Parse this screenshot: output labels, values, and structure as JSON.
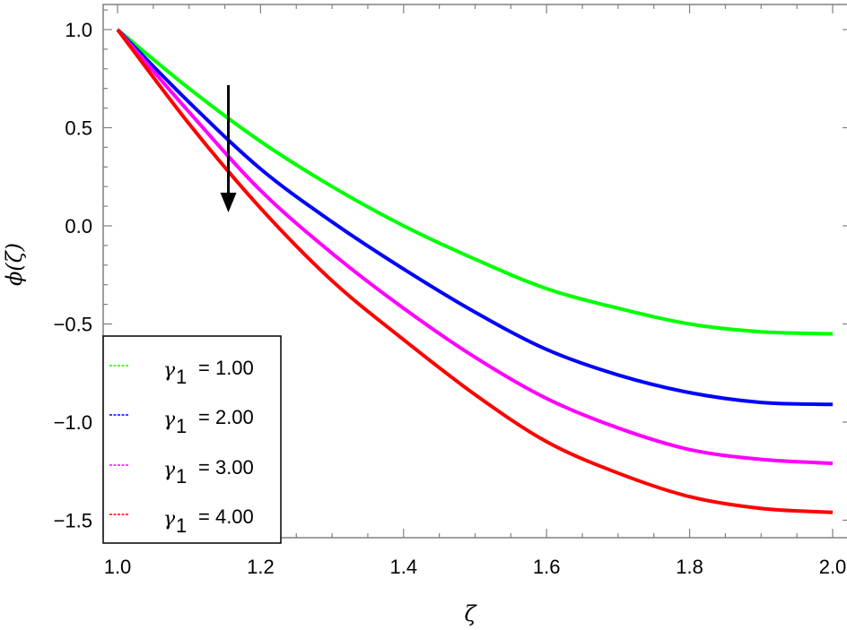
{
  "chart_data": {
    "type": "line",
    "title": "",
    "xlabel": "ζ",
    "ylabel": "ϕ(ζ)",
    "xlim": [
      1.0,
      2.0
    ],
    "ylim": [
      -1.6,
      1.1
    ],
    "grid": false,
    "frame": true,
    "legend_position": "lower-left inside",
    "x_ticks": [
      1.0,
      1.2,
      1.4,
      1.6,
      1.8,
      2.0
    ],
    "x_tick_labels": [
      "1.0",
      "1.2",
      "1.4",
      "1.6",
      "1.8",
      "2.0"
    ],
    "y_ticks": [
      1.0,
      0.5,
      0.0,
      -0.5,
      -1.0,
      -1.5
    ],
    "y_tick_labels": [
      "1.0",
      "0.5",
      "0.0",
      "−0.5",
      "−1.0",
      "−1.5"
    ],
    "x": [
      1.0,
      1.1,
      1.2,
      1.3,
      1.4,
      1.5,
      1.6,
      1.7,
      1.8,
      1.9,
      2.0
    ],
    "series": [
      {
        "name": "γ1 = 1.00",
        "color": "#00ff00",
        "values": [
          1.0,
          0.7,
          0.43,
          0.2,
          0.0,
          -0.17,
          -0.32,
          -0.42,
          -0.5,
          -0.54,
          -0.55
        ]
      },
      {
        "name": "γ1 = 2.00",
        "color": "#0000ff",
        "values": [
          1.0,
          0.63,
          0.29,
          0.02,
          -0.22,
          -0.44,
          -0.63,
          -0.76,
          -0.85,
          -0.9,
          -0.91
        ]
      },
      {
        "name": "γ1 = 3.00",
        "color": "#ff00ff",
        "values": [
          1.0,
          0.58,
          0.18,
          -0.14,
          -0.42,
          -0.67,
          -0.88,
          -1.03,
          -1.14,
          -1.19,
          -1.21
        ]
      },
      {
        "name": "γ1 = 4.00",
        "color": "#ff0000",
        "values": [
          1.0,
          0.52,
          0.09,
          -0.28,
          -0.58,
          -0.86,
          -1.1,
          -1.26,
          -1.38,
          -1.44,
          -1.46
        ]
      }
    ],
    "annotations": [
      {
        "type": "arrow",
        "direction": "down",
        "x": 1.155,
        "y_from": 0.72,
        "y_to": 0.07,
        "meaning": "increasing γ1"
      }
    ]
  },
  "legend": {
    "items": [
      {
        "symbol": "γ",
        "sub": "1",
        "text": "= 1.00",
        "color": "#00ff00"
      },
      {
        "symbol": "γ",
        "sub": "1",
        "text": "= 2.00",
        "color": "#0000ff"
      },
      {
        "symbol": "γ",
        "sub": "1",
        "text": "= 3.00",
        "color": "#ff00ff"
      },
      {
        "symbol": "γ",
        "sub": "1",
        "text": "= 4.00",
        "color": "#ff0000"
      }
    ]
  },
  "axes": {
    "x_title": "ζ",
    "y_title": "ϕ(ζ)"
  }
}
